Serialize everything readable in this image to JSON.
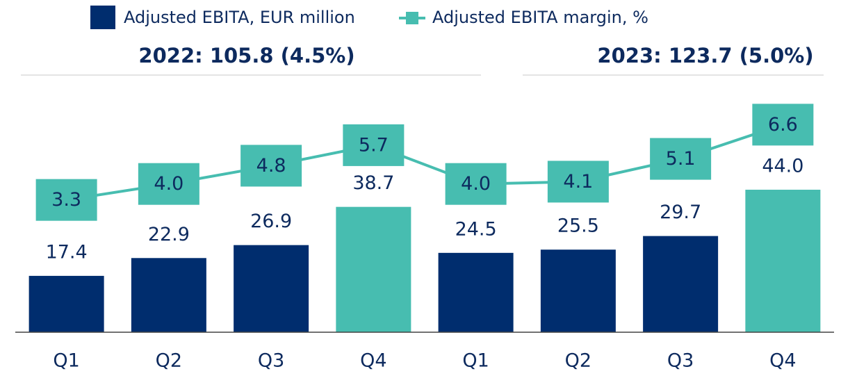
{
  "chart_data": {
    "type": "bar",
    "categories": [
      "Q1",
      "Q2",
      "Q3",
      "Q4",
      "Q1",
      "Q2",
      "Q3",
      "Q4"
    ],
    "annotations": [
      "2022: 105.8 (4.5%)",
      "2023: 123.7 (5.0%)"
    ],
    "ylim": [
      0,
      100
    ],
    "y2lim": [
      -2.5,
      11.7
    ],
    "series": [
      {
        "name": "Adjusted EBITA, EUR million",
        "type": "bar",
        "color": "#002d6e",
        "colors": [
          "#002d6e",
          "#002d6e",
          "#002d6e",
          "#47bdb0",
          "#002d6e",
          "#002d6e",
          "#002d6e",
          "#47bdb0"
        ],
        "values": [
          17.4,
          22.9,
          26.9,
          38.7,
          24.5,
          25.5,
          29.7,
          44.0
        ],
        "value_labels": [
          "17.4",
          "22.9",
          "26.9",
          "38.7",
          "24.5",
          "25.5",
          "29.7",
          "44.0"
        ]
      },
      {
        "name": "Adjusted EBITA margin, %",
        "type": "line",
        "axis": "y2",
        "color": "#47bdb0",
        "values": [
          3.3,
          4.0,
          4.8,
          5.7,
          4.0,
          4.1,
          5.1,
          6.6
        ],
        "value_labels": [
          "3.3",
          "4.0",
          "4.8",
          "5.7",
          "4.0",
          "4.1",
          "5.1",
          "6.6"
        ]
      }
    ]
  }
}
